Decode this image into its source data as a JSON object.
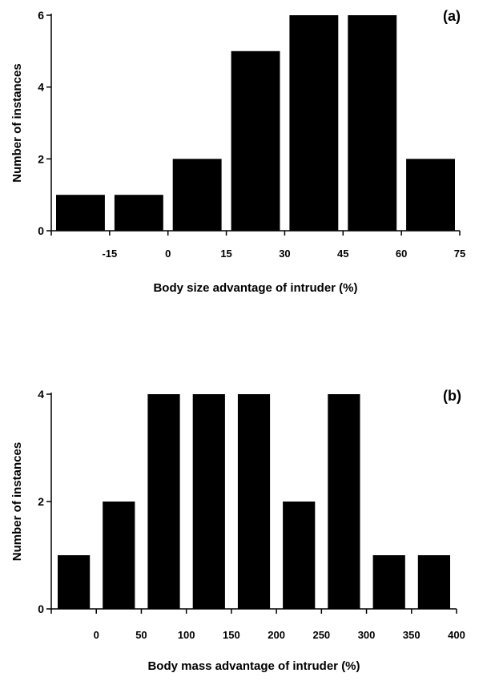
{
  "chart_data": [
    {
      "type": "bar",
      "panel_label": "(a)",
      "xlabel": "Body size advantage of intruder (%)",
      "ylabel": "Number of instances",
      "bin_edges": [
        -30,
        -15,
        0,
        15,
        30,
        45,
        60,
        75
      ],
      "x_tick_labels": [
        "-15",
        "0",
        "15",
        "30",
        "45",
        "60",
        "75"
      ],
      "x_tick_values": [
        -15,
        0,
        15,
        30,
        45,
        60,
        75
      ],
      "values": [
        1,
        1,
        2,
        5,
        6,
        6,
        2
      ],
      "y_ticks": [
        0,
        2,
        4,
        6
      ],
      "ylim": [
        0,
        6
      ],
      "xlim": [
        -30,
        75
      ],
      "grid": false,
      "bar_color": "#000000"
    },
    {
      "type": "bar",
      "panel_label": "(b)",
      "xlabel": "Body mass advantage of intruder (%)",
      "ylabel": "Number of instances",
      "bin_edges": [
        -50,
        0,
        50,
        100,
        150,
        200,
        250,
        300,
        350,
        400
      ],
      "x_tick_labels": [
        "0",
        "50",
        "100",
        "150",
        "200",
        "250",
        "300",
        "350",
        "400"
      ],
      "x_tick_values": [
        0,
        50,
        100,
        150,
        200,
        250,
        300,
        350,
        400
      ],
      "values": [
        1,
        2,
        4,
        4,
        4,
        2,
        4,
        1,
        1
      ],
      "y_ticks": [
        0,
        2,
        4
      ],
      "ylim": [
        0,
        4
      ],
      "xlim": [
        -50,
        400
      ],
      "grid": false,
      "bar_color": "#000000"
    }
  ]
}
